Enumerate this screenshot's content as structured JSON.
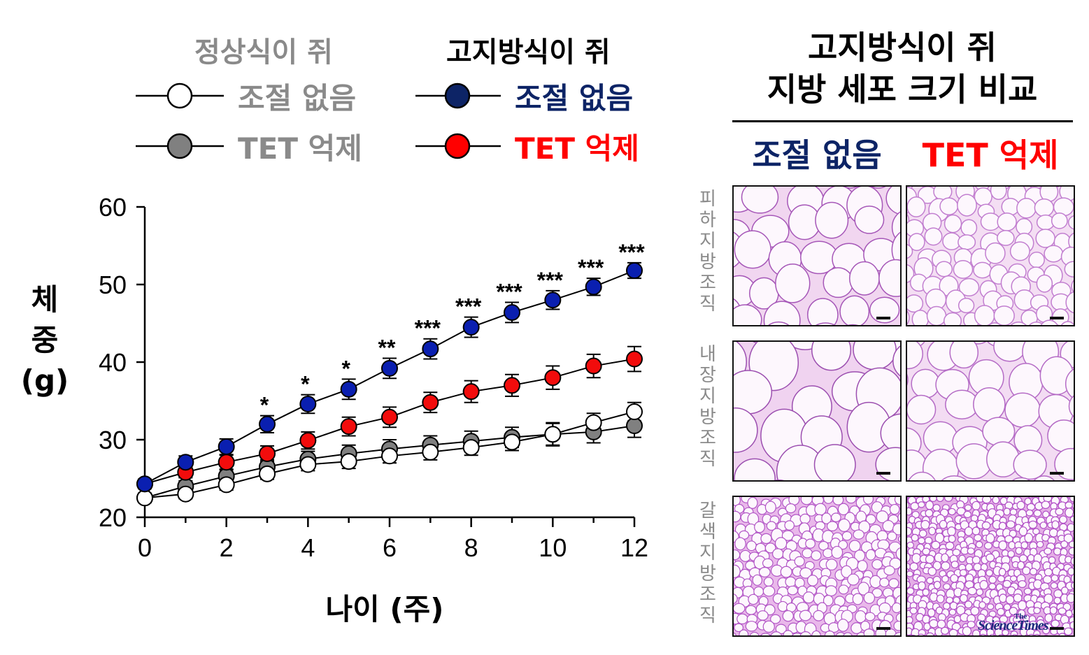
{
  "legend": {
    "normal_diet_title": "정상식이 쥐",
    "high_fat_title": "고지방식이 쥐",
    "normal_control": "조절 없음",
    "normal_tet": "TET 억제",
    "hfd_control": "조절 없음",
    "hfd_tet": "TET 억제"
  },
  "colors": {
    "normal_control": "#ffffff",
    "normal_tet": "#808080",
    "hfd_control": "#0a1fb0",
    "hfd_tet": "#f20c0c",
    "gray_text": "#8a8a8a",
    "navy_text": "#0d2466",
    "red_text": "#ff0000"
  },
  "chart_data": {
    "type": "line",
    "xlabel": "나이 (주)",
    "ylabel_lines": [
      "체",
      "중",
      "(g)"
    ],
    "x": [
      0,
      1,
      2,
      3,
      4,
      5,
      6,
      7,
      8,
      9,
      10,
      11,
      12
    ],
    "xticks": [
      0,
      2,
      4,
      6,
      8,
      10,
      12
    ],
    "yticks": [
      20,
      30,
      40,
      50,
      60
    ],
    "xlim": [
      0,
      12
    ],
    "ylim": [
      20,
      60
    ],
    "series": [
      {
        "key": "normal_tet",
        "name": "TET 억제",
        "values": [
          22.5,
          24.0,
          25.3,
          26.5,
          27.5,
          28.2,
          28.8,
          29.3,
          29.8,
          30.3,
          30.7,
          31.0,
          31.8
        ],
        "errors": [
          0.6,
          0.7,
          0.8,
          0.9,
          1.0,
          1.1,
          1.2,
          1.2,
          1.3,
          1.3,
          1.4,
          1.4,
          1.5
        ]
      },
      {
        "key": "normal_control",
        "name": "조절 없음",
        "values": [
          22.5,
          23.0,
          24.2,
          25.6,
          26.8,
          27.2,
          27.9,
          28.4,
          29.0,
          29.7,
          30.7,
          32.2,
          33.6
        ],
        "errors": [
          0.5,
          0.6,
          0.7,
          0.7,
          0.8,
          0.9,
          0.9,
          1.0,
          1.0,
          1.1,
          1.5,
          1.2,
          1.2
        ]
      },
      {
        "key": "hfd_tet",
        "name": "TET 억제",
        "values": [
          24.3,
          25.8,
          27.1,
          28.2,
          29.9,
          31.7,
          32.9,
          34.8,
          36.2,
          37.0,
          38.0,
          39.5,
          40.4
        ],
        "errors": [
          0.6,
          0.7,
          0.9,
          1.0,
          1.1,
          1.2,
          1.3,
          1.3,
          1.4,
          1.4,
          1.5,
          1.5,
          1.6
        ]
      },
      {
        "key": "hfd_control",
        "name": "조절 없음",
        "values": [
          24.3,
          27.1,
          29.1,
          32.0,
          34.6,
          36.5,
          39.2,
          41.7,
          44.5,
          46.4,
          48.0,
          49.7,
          51.8
        ],
        "errors": [
          0.6,
          0.8,
          1.0,
          1.1,
          1.2,
          1.3,
          1.3,
          1.3,
          1.3,
          1.3,
          1.2,
          1.1,
          1.0
        ]
      }
    ],
    "significance": [
      {
        "x": 3,
        "label": "*"
      },
      {
        "x": 4,
        "label": "*"
      },
      {
        "x": 5,
        "label": "*"
      },
      {
        "x": 6,
        "label": "**"
      },
      {
        "x": 7,
        "label": "***"
      },
      {
        "x": 8,
        "label": "***"
      },
      {
        "x": 9,
        "label": "***"
      },
      {
        "x": 10,
        "label": "***"
      },
      {
        "x": 11,
        "label": "***"
      },
      {
        "x": 12,
        "label": "***"
      }
    ]
  },
  "histology": {
    "title_line1": "고지방식이 쥐",
    "title_line2": "지방 세포 크기 비교",
    "col_control": "조절 없음",
    "col_tet": "TET 억제",
    "rows": [
      {
        "key": "subcutaneous",
        "label": "피하지방조직"
      },
      {
        "key": "visceral",
        "label": "내장지방조직"
      },
      {
        "key": "brown",
        "label": "갈색지방조직"
      }
    ]
  },
  "watermark": {
    "top": "The",
    "main": "ScienceTimes"
  }
}
